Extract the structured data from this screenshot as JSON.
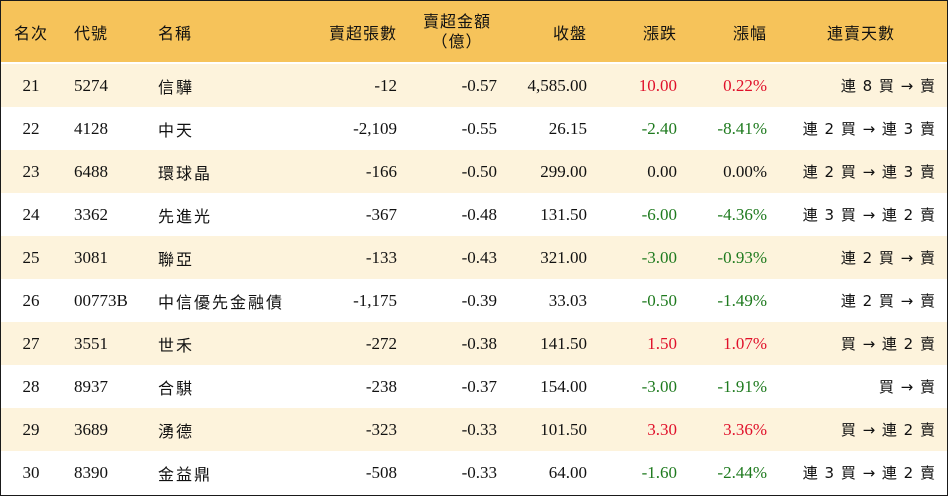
{
  "header": {
    "rank": "名次",
    "code": "代號",
    "name": "名稱",
    "sell_lots": "賣超張數",
    "sell_amount_line1": "賣超金額",
    "sell_amount_line2": "（億）",
    "close": "收盤",
    "change": "漲跌",
    "change_pct": "漲幅",
    "streak": "連賣天數"
  },
  "rows": [
    {
      "rank": "21",
      "code": "5274",
      "name": "信驊",
      "sell_lots": "-12",
      "sell_amount": "-0.57",
      "close": "4,585.00",
      "change": "10.00",
      "change_pct": "0.22%",
      "streak": "連 8 買 → 賣",
      "dir": "up"
    },
    {
      "rank": "22",
      "code": "4128",
      "name": "中天",
      "sell_lots": "-2,109",
      "sell_amount": "-0.55",
      "close": "26.15",
      "change": "-2.40",
      "change_pct": "-8.41%",
      "streak": "連 2 買 → 連 3 賣",
      "dir": "down"
    },
    {
      "rank": "23",
      "code": "6488",
      "name": "環球晶",
      "sell_lots": "-166",
      "sell_amount": "-0.50",
      "close": "299.00",
      "change": "0.00",
      "change_pct": "0.00%",
      "streak": "連 2 買 → 連 3 賣",
      "dir": "flat"
    },
    {
      "rank": "24",
      "code": "3362",
      "name": "先進光",
      "sell_lots": "-367",
      "sell_amount": "-0.48",
      "close": "131.50",
      "change": "-6.00",
      "change_pct": "-4.36%",
      "streak": "連 3 買 → 連 2 賣",
      "dir": "down"
    },
    {
      "rank": "25",
      "code": "3081",
      "name": "聯亞",
      "sell_lots": "-133",
      "sell_amount": "-0.43",
      "close": "321.00",
      "change": "-3.00",
      "change_pct": "-0.93%",
      "streak": "連 2 買 → 賣",
      "dir": "down"
    },
    {
      "rank": "26",
      "code": "00773B",
      "name": "中信優先金融債",
      "sell_lots": "-1,175",
      "sell_amount": "-0.39",
      "close": "33.03",
      "change": "-0.50",
      "change_pct": "-1.49%",
      "streak": "連 2 買 → 賣",
      "dir": "down"
    },
    {
      "rank": "27",
      "code": "3551",
      "name": "世禾",
      "sell_lots": "-272",
      "sell_amount": "-0.38",
      "close": "141.50",
      "change": "1.50",
      "change_pct": "1.07%",
      "streak": "買 → 連 2 賣",
      "dir": "up"
    },
    {
      "rank": "28",
      "code": "8937",
      "name": "合騏",
      "sell_lots": "-238",
      "sell_amount": "-0.37",
      "close": "154.00",
      "change": "-3.00",
      "change_pct": "-1.91%",
      "streak": "買 → 賣",
      "dir": "down"
    },
    {
      "rank": "29",
      "code": "3689",
      "name": "湧德",
      "sell_lots": "-323",
      "sell_amount": "-0.33",
      "close": "101.50",
      "change": "3.30",
      "change_pct": "3.36%",
      "streak": "買 → 連 2 賣",
      "dir": "up"
    },
    {
      "rank": "30",
      "code": "8390",
      "name": "金益鼎",
      "sell_lots": "-508",
      "sell_amount": "-0.33",
      "close": "64.00",
      "change": "-1.60",
      "change_pct": "-2.44%",
      "streak": "連 3 買 → 連 2 賣",
      "dir": "down"
    }
  ],
  "colors": {
    "header_bg": "#f6c35a",
    "odd_row_bg": "#fdf3dc",
    "even_row_bg": "#ffffff",
    "up": "#e0102a",
    "down": "#1e7a1e",
    "flat": "#111111"
  }
}
